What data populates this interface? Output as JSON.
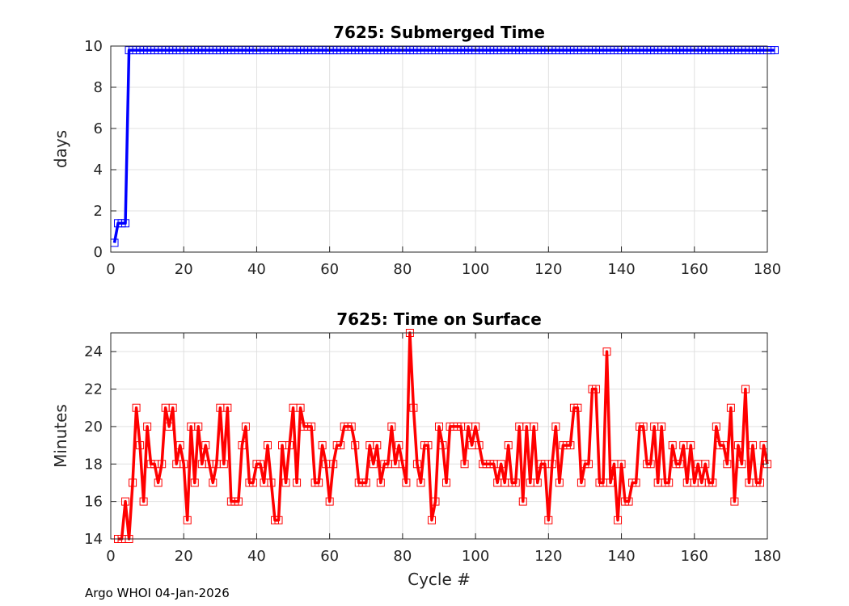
{
  "footer": "Argo WHOI 04-Jan-2026",
  "chart_data": [
    {
      "type": "line",
      "title": "7625: Submerged Time",
      "xlabel": "",
      "ylabel": "days",
      "xlim": [
        0,
        180
      ],
      "ylim": [
        0,
        10
      ],
      "xticks": [
        0,
        20,
        40,
        60,
        80,
        100,
        120,
        140,
        160,
        180
      ],
      "yticks": [
        0,
        2,
        4,
        6,
        8,
        10
      ],
      "grid": true,
      "color": "#0000ff",
      "marker": "square",
      "x_start": 1,
      "values": [
        0.45,
        1.4,
        1.4,
        1.4,
        9.8,
        9.8,
        9.8,
        9.8,
        9.8,
        9.8,
        9.8,
        9.8,
        9.8,
        9.8,
        9.8,
        9.8,
        9.8,
        9.8,
        9.8,
        9.8,
        9.8,
        9.8,
        9.8,
        9.8,
        9.8,
        9.8,
        9.8,
        9.8,
        9.8,
        9.8,
        9.8,
        9.8,
        9.8,
        9.8,
        9.8,
        9.8,
        9.8,
        9.8,
        9.8,
        9.8,
        9.8,
        9.8,
        9.8,
        9.8,
        9.8,
        9.8,
        9.8,
        9.8,
        9.8,
        9.8,
        9.8,
        9.8,
        9.8,
        9.8,
        9.8,
        9.8,
        9.8,
        9.8,
        9.8,
        9.8,
        9.8,
        9.8,
        9.8,
        9.8,
        9.8,
        9.8,
        9.8,
        9.8,
        9.8,
        9.8,
        9.8,
        9.8,
        9.8,
        9.8,
        9.8,
        9.8,
        9.8,
        9.8,
        9.8,
        9.8,
        9.8,
        9.8,
        9.8,
        9.8,
        9.8,
        9.8,
        9.8,
        9.8,
        9.8,
        9.8,
        9.8,
        9.8,
        9.8,
        9.8,
        9.8,
        9.8,
        9.8,
        9.8,
        9.8,
        9.8,
        9.8,
        9.8,
        9.8,
        9.8,
        9.8,
        9.8,
        9.8,
        9.8,
        9.8,
        9.8,
        9.8,
        9.8,
        9.8,
        9.8,
        9.8,
        9.8,
        9.8,
        9.8,
        9.8,
        9.8,
        9.8,
        9.8,
        9.8,
        9.8,
        9.8,
        9.8,
        9.8,
        9.8,
        9.8,
        9.8,
        9.8,
        9.8,
        9.8,
        9.8,
        9.8,
        9.8,
        9.8,
        9.8,
        9.8,
        9.8,
        9.8,
        9.8,
        9.8,
        9.8,
        9.8,
        9.8,
        9.8,
        9.8,
        9.8,
        9.8,
        9.8,
        9.8,
        9.8,
        9.8,
        9.8,
        9.8,
        9.8,
        9.8,
        9.8,
        9.8,
        9.8,
        9.8,
        9.8,
        9.8,
        9.8,
        9.8,
        9.8,
        9.8,
        9.8,
        9.8,
        9.8,
        9.8,
        9.8,
        9.8,
        9.8,
        9.8,
        9.8,
        9.8,
        9.8,
        9.8,
        9.8,
        9.8
      ]
    },
    {
      "type": "line",
      "title": "7625: Time on Surface",
      "xlabel": "Cycle #",
      "ylabel": "Minutes",
      "xlim": [
        0,
        180
      ],
      "ylim": [
        14,
        25
      ],
      "xticks": [
        0,
        20,
        40,
        60,
        80,
        100,
        120,
        140,
        160,
        180
      ],
      "yticks": [
        14,
        16,
        18,
        20,
        22,
        24
      ],
      "grid": true,
      "color": "#ff0000",
      "marker": "square",
      "x_start": 2,
      "values": [
        14,
        14,
        16,
        14,
        17,
        21,
        19,
        16,
        20,
        18,
        18,
        17,
        18,
        21,
        20,
        21,
        18,
        19,
        18,
        15,
        20,
        17,
        20,
        18,
        19,
        18,
        17,
        18,
        21,
        18,
        21,
        16,
        16,
        16,
        19,
        20,
        17,
        17,
        18,
        18,
        17,
        19,
        17,
        15,
        15,
        19,
        17,
        19,
        21,
        17,
        21,
        20,
        20,
        20,
        17,
        17,
        19,
        18,
        16,
        18,
        19,
        19,
        20,
        20,
        20,
        19,
        17,
        17,
        17,
        19,
        18,
        19,
        17,
        18,
        18,
        20,
        18,
        19,
        18,
        17,
        25,
        21,
        18,
        17,
        19,
        19,
        15,
        16,
        20,
        19,
        17,
        20,
        20,
        20,
        20,
        18,
        20,
        19,
        20,
        19,
        18,
        18,
        18,
        18,
        17,
        18,
        17,
        19,
        17,
        17,
        20,
        16,
        20,
        17,
        20,
        17,
        18,
        18,
        15,
        18,
        20,
        17,
        19,
        19,
        19,
        21,
        21,
        17,
        18,
        18,
        22,
        22,
        17,
        17,
        24,
        17,
        18,
        15,
        18,
        16,
        16,
        17,
        17,
        20,
        20,
        18,
        18,
        20,
        17,
        20,
        17,
        17,
        19,
        18,
        18,
        19,
        17,
        19,
        17,
        18,
        17,
        18,
        17,
        17,
        20,
        19,
        19,
        18,
        21,
        16,
        19,
        18,
        22,
        17,
        19,
        17,
        17,
        19,
        18
      ]
    }
  ]
}
